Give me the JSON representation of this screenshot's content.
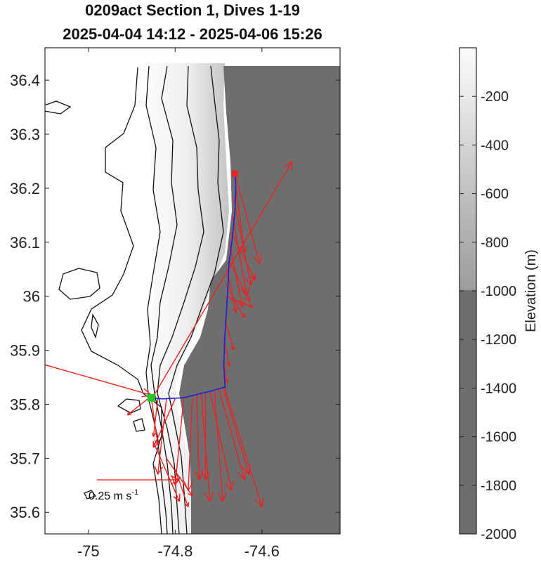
{
  "title": {
    "line1": "0209act Section 1, Dives 1-19",
    "line2": "2025-04-04 14:12 - 2025-04-06 15:26"
  },
  "chart_data": {
    "type": "map",
    "x_ticks": [
      "-75",
      "-74.8",
      "-74.6"
    ],
    "y_ticks": [
      "36.4",
      "36.3",
      "36.2",
      "36.1",
      "36",
      "35.9",
      "35.8",
      "35.7",
      "35.6"
    ],
    "xlim": [
      -75.1,
      -74.42
    ],
    "ylim": [
      35.56,
      36.46
    ],
    "track": [
      [
        -74.855,
        35.812
      ],
      [
        -74.83,
        35.81
      ],
      [
        -74.78,
        35.812
      ],
      [
        -74.72,
        35.824
      ],
      [
        -74.685,
        35.832
      ],
      [
        -74.688,
        35.87
      ],
      [
        -74.686,
        35.92
      ],
      [
        -74.682,
        35.97
      ],
      [
        -74.678,
        36.02
      ],
      [
        -74.676,
        36.06
      ],
      [
        -74.668,
        36.11
      ],
      [
        -74.662,
        36.16
      ],
      [
        -74.66,
        36.2
      ],
      [
        -74.662,
        36.227
      ]
    ],
    "start_marker": {
      "lon": -74.855,
      "lat": 35.812,
      "color": "#22cc22"
    },
    "end_marker": {
      "lon": -74.662,
      "lat": 36.227,
      "color": "#ee2222"
    },
    "current_vectors": [
      [
        -74.66,
        36.22,
        -74.605,
        36.06
      ],
      [
        -74.66,
        36.2,
        -74.64,
        36.08
      ],
      [
        -74.665,
        36.18,
        -74.625,
        36.02
      ],
      [
        -74.668,
        36.15,
        -74.635,
        36.0
      ],
      [
        -74.672,
        36.12,
        -74.615,
        36.03
      ],
      [
        -74.675,
        36.1,
        -74.645,
        35.98
      ],
      [
        -74.678,
        36.07,
        -74.628,
        35.99
      ],
      [
        -74.68,
        36.05,
        -74.66,
        35.97
      ],
      [
        -74.682,
        36.02,
        -74.64,
        35.96
      ],
      [
        -74.684,
        36.0,
        -74.62,
        35.98
      ],
      [
        -74.686,
        35.96,
        -74.665,
        35.9
      ],
      [
        -74.687,
        35.92,
        -74.675,
        35.87
      ],
      [
        -74.688,
        35.88,
        -74.68,
        35.84
      ],
      [
        -74.686,
        35.83,
        -74.6,
        35.61
      ],
      [
        -74.69,
        35.832,
        -74.63,
        35.67
      ],
      [
        -74.7,
        35.83,
        -74.64,
        35.66
      ],
      [
        -74.71,
        35.828,
        -74.69,
        35.62
      ],
      [
        -74.72,
        35.824,
        -74.67,
        35.64
      ],
      [
        -74.73,
        35.822,
        -74.73,
        35.66
      ],
      [
        -74.74,
        35.82,
        -74.72,
        35.62
      ],
      [
        -74.75,
        35.818,
        -74.745,
        35.66
      ],
      [
        -74.76,
        35.815,
        -74.77,
        35.64
      ],
      [
        -74.78,
        35.812,
        -74.8,
        35.65
      ],
      [
        -74.8,
        35.81,
        -74.85,
        35.72
      ],
      [
        -74.82,
        35.81,
        -74.84,
        35.67
      ],
      [
        -74.84,
        35.81,
        -74.85,
        35.74
      ],
      [
        -74.855,
        35.812,
        -74.84,
        35.725
      ],
      [
        -74.86,
        35.812,
        -74.91,
        35.78
      ],
      [
        -75.1,
        35.873,
        -74.855,
        35.817
      ],
      [
        -74.85,
        35.815,
        -74.53,
        36.25
      ],
      [
        -74.85,
        35.73,
        -74.79,
        35.62
      ],
      [
        -74.82,
        35.7,
        -74.76,
        35.63
      ],
      [
        -74.8,
        35.68,
        -74.77,
        35.61
      ]
    ],
    "scale_arrow": {
      "label": "0.25 m s",
      "exponent": "-1",
      "lon": -74.98,
      "lat": 35.66,
      "dlon": 0.19
    },
    "colorbar": {
      "label": "Elevation (m)",
      "ticks": [
        "-200",
        "-400",
        "-600",
        "-800",
        "-1000",
        "-1200",
        "-1400",
        "-1600",
        "-1800",
        "-2000"
      ],
      "range": [
        -2000,
        0
      ],
      "deep_color": "#6e6e6e",
      "shallow_color": "#ffffff"
    }
  }
}
